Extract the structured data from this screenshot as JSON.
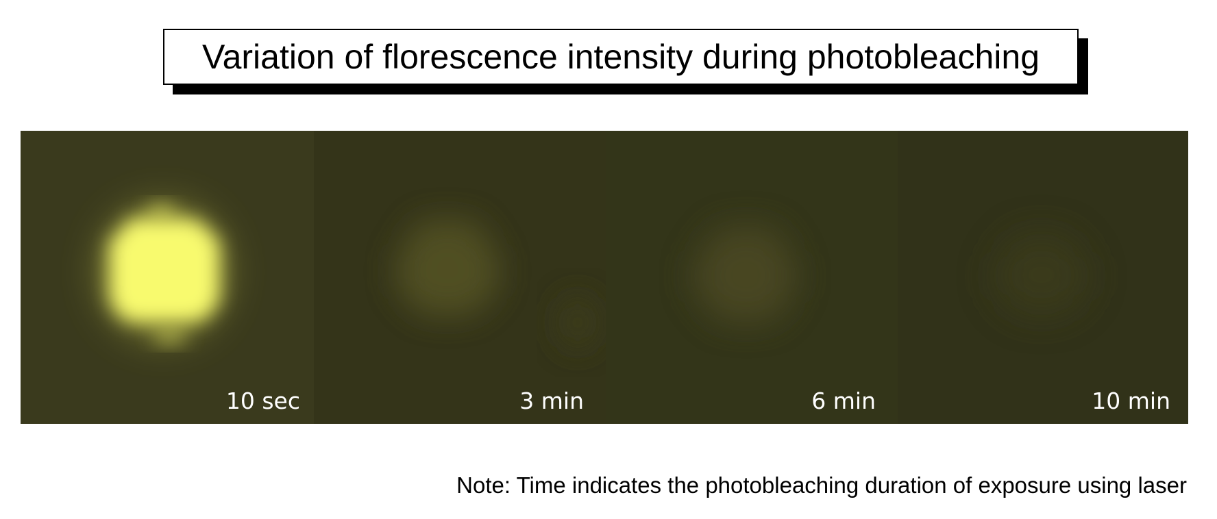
{
  "title": "Variation of florescence intensity during photobleaching",
  "panels": [
    {
      "label": "10 sec",
      "intensity": 1.0,
      "background": "#3a3a1d",
      "spot_color": "#f8fa6e"
    },
    {
      "label": "3 min",
      "intensity": 0.35,
      "background": "#343419",
      "spot_color": "#5c5a26"
    },
    {
      "label": "6 min",
      "intensity": 0.25,
      "background": "#333519",
      "spot_color": "#535028"
    },
    {
      "label": "10 min",
      "intensity": 0.12,
      "background": "#313219",
      "spot_color": "#403f1f"
    }
  ],
  "note": "Note: Time indicates the photobleaching duration of exposure using laser"
}
